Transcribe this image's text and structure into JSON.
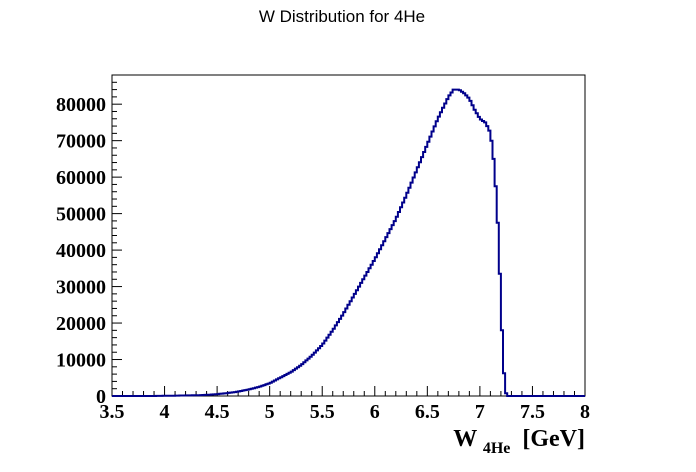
{
  "chart_data": {
    "type": "histogram",
    "title": "W Distribution for 4He",
    "xlabel": {
      "main": "W",
      "subscript": "4He",
      "unit": "[GeV]"
    },
    "ylabel": "",
    "xlim": [
      3.5,
      8.0
    ],
    "ylim": [
      0,
      88000
    ],
    "grid": false,
    "legend": "none",
    "line_color": "#00008b",
    "x_ticks": [
      {
        "value": 3.5,
        "label": "3.5"
      },
      {
        "value": 4.0,
        "label": "4"
      },
      {
        "value": 4.5,
        "label": "4.5"
      },
      {
        "value": 5.0,
        "label": "5"
      },
      {
        "value": 5.5,
        "label": "5.5"
      },
      {
        "value": 6.0,
        "label": "6"
      },
      {
        "value": 6.5,
        "label": "6.5"
      },
      {
        "value": 7.0,
        "label": "7"
      },
      {
        "value": 7.5,
        "label": "7.5"
      },
      {
        "value": 8.0,
        "label": "8"
      }
    ],
    "y_ticks": [
      {
        "value": 0,
        "label": "0"
      },
      {
        "value": 10000,
        "label": "10000"
      },
      {
        "value": 20000,
        "label": "20000"
      },
      {
        "value": 30000,
        "label": "30000"
      },
      {
        "value": 40000,
        "label": "40000"
      },
      {
        "value": 50000,
        "label": "50000"
      },
      {
        "value": 60000,
        "label": "60000"
      },
      {
        "value": 70000,
        "label": "70000"
      },
      {
        "value": 80000,
        "label": "80000"
      }
    ],
    "points": [
      [
        3.5,
        0
      ],
      [
        3.9,
        0
      ],
      [
        4.1,
        100
      ],
      [
        4.3,
        200
      ],
      [
        4.4,
        300
      ],
      [
        4.5,
        500
      ],
      [
        4.6,
        800
      ],
      [
        4.7,
        1200
      ],
      [
        4.8,
        1800
      ],
      [
        4.9,
        2500
      ],
      [
        5.0,
        3500
      ],
      [
        5.1,
        5000
      ],
      [
        5.2,
        6500
      ],
      [
        5.3,
        8500
      ],
      [
        5.4,
        11000
      ],
      [
        5.5,
        14000
      ],
      [
        5.6,
        18000
      ],
      [
        5.7,
        22500
      ],
      [
        5.8,
        27500
      ],
      [
        5.9,
        32500
      ],
      [
        6.0,
        37500
      ],
      [
        6.1,
        43000
      ],
      [
        6.2,
        48500
      ],
      [
        6.3,
        55000
      ],
      [
        6.4,
        62000
      ],
      [
        6.5,
        69000
      ],
      [
        6.6,
        76000
      ],
      [
        6.7,
        82000
      ],
      [
        6.75,
        84000
      ],
      [
        6.8,
        84000
      ],
      [
        6.85,
        83000
      ],
      [
        6.9,
        81500
      ],
      [
        6.95,
        78500
      ],
      [
        7.0,
        76000
      ],
      [
        7.05,
        75000
      ],
      [
        7.08,
        73500
      ],
      [
        7.1,
        72000
      ],
      [
        7.12,
        68000
      ],
      [
        7.14,
        62000
      ],
      [
        7.16,
        53000
      ],
      [
        7.18,
        42000
      ],
      [
        7.2,
        25000
      ],
      [
        7.22,
        11000
      ],
      [
        7.24,
        1500
      ],
      [
        7.26,
        0
      ],
      [
        8.0,
        0
      ]
    ]
  }
}
